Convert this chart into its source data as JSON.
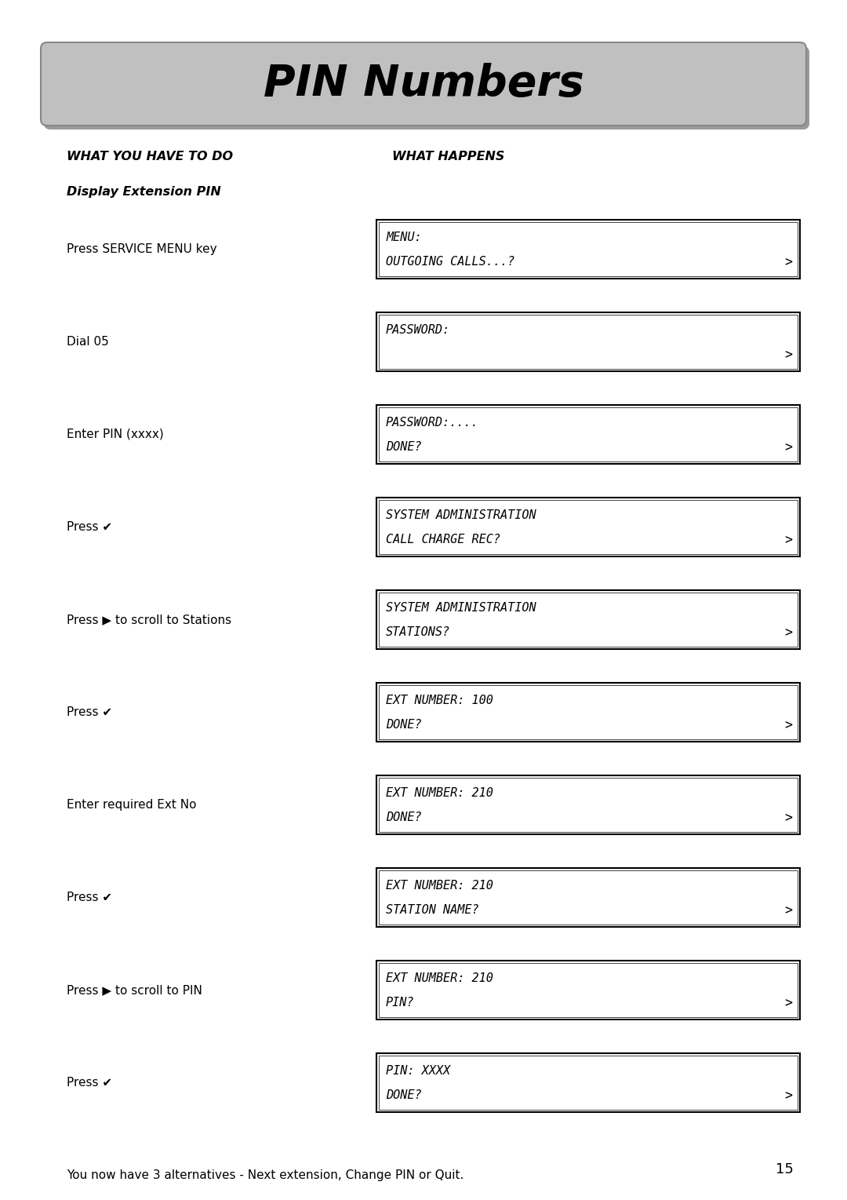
{
  "title": "PIN Numbers",
  "bg_color": "#ffffff",
  "header_left": "WHAT YOU HAVE TO DO",
  "header_right": "WHAT HAPPENS",
  "subheader": "Display Extension PIN",
  "steps": [
    {
      "left": "Press SERVICE MENU key",
      "line1": "MENU:",
      "line2": "OUTGOING CALLS...?",
      "arrow_line": 2
    },
    {
      "left": "Dial 05",
      "line1": "PASSWORD:",
      "line2": "",
      "arrow_line": 2
    },
    {
      "left": "Enter PIN (xxxx)",
      "line1": "PASSWORD:....",
      "line2": "DONE?",
      "arrow_line": 2
    },
    {
      "left": "Press ✔",
      "line1": "SYSTEM ADMINISTRATION",
      "line2": "CALL CHARGE REC?",
      "arrow_line": 2
    },
    {
      "left": "Press ▶ to scroll to Stations",
      "line1": "SYSTEM ADMINISTRATION",
      "line2": "STATIONS?",
      "arrow_line": 2
    },
    {
      "left": "Press ✔",
      "line1": "EXT NUMBER: 100",
      "line2": "DONE?",
      "arrow_line": 2
    },
    {
      "left": "Enter required Ext No",
      "line1": "EXT NUMBER: 210",
      "line2": "DONE?",
      "arrow_line": 2
    },
    {
      "left": "Press ✔",
      "line1": "EXT NUMBER: 210",
      "line2": "STATION NAME?",
      "arrow_line": 2
    },
    {
      "left": "Press ▶ to scroll to PIN",
      "line1": "EXT NUMBER: 210",
      "line2": "PIN?",
      "arrow_line": 2
    },
    {
      "left": "Press ✔",
      "line1": "PIN: XXXX",
      "line2": "DONE?",
      "arrow_line": 2
    }
  ],
  "footer": "You now have 3 alternatives - Next extension, Change PIN or Quit.",
  "page_number": "15",
  "banner_color": "#c0c0c0",
  "banner_edge": "#888888",
  "banner_shadow": "#999999"
}
